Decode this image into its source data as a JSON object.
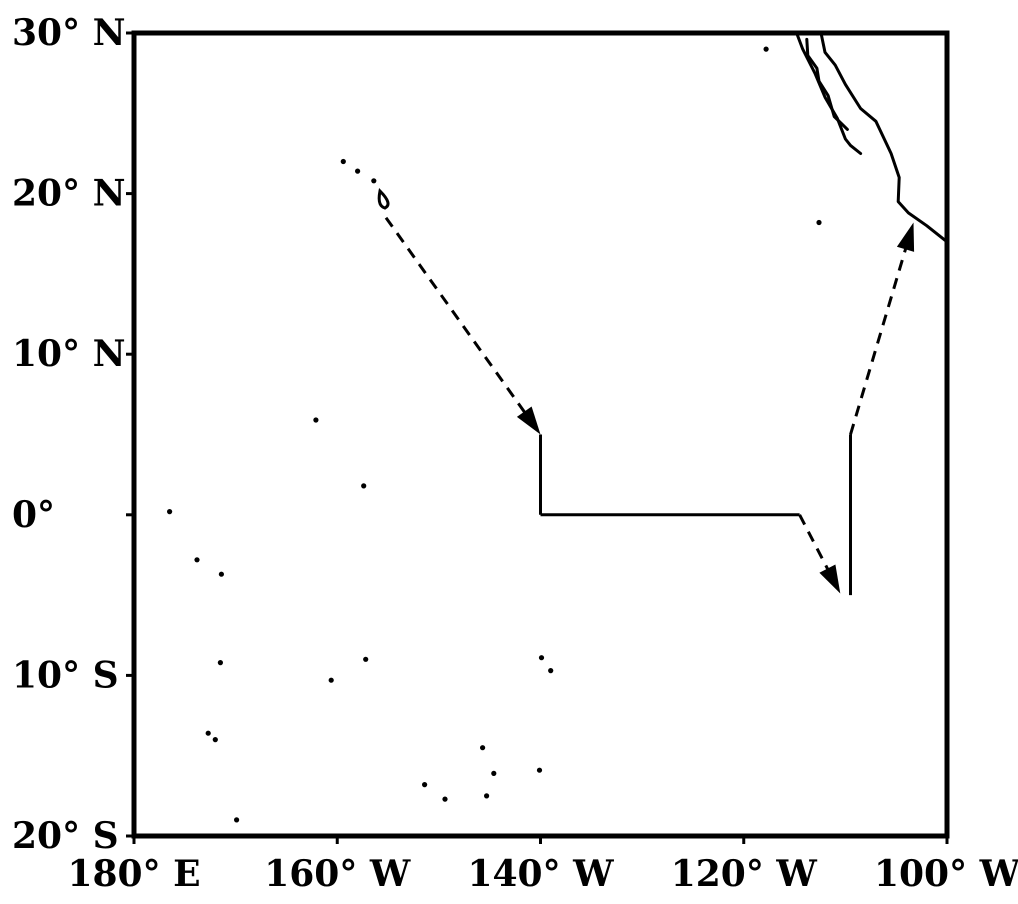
{
  "map": {
    "type": "map",
    "projection": "equirectangular",
    "lon_range": [
      180,
      260
    ],
    "lat_range": [
      -20,
      30
    ],
    "colors": {
      "frame": "#000000",
      "coastline": "#000000",
      "track": "#000000",
      "background": "#ffffff"
    },
    "x_ticks": [
      {
        "lon": 180,
        "label": "180° E"
      },
      {
        "lon": 200,
        "label": "160° W"
      },
      {
        "lon": 220,
        "label": "140° W"
      },
      {
        "lon": 240,
        "label": "120° W"
      },
      {
        "lon": 260,
        "label": "100° W"
      }
    ],
    "y_ticks": [
      {
        "lat": 30,
        "label": "30° N"
      },
      {
        "lat": 20,
        "label": "20° N"
      },
      {
        "lat": 10,
        "label": "10° N"
      },
      {
        "lat": 0,
        "label": "0°"
      },
      {
        "lat": -10,
        "label": "10° S"
      },
      {
        "lat": -20,
        "label": "20° S"
      }
    ],
    "coastlines": [
      {
        "name": "baja-california-west-coast",
        "points": [
          [
            245.2,
            30
          ],
          [
            245.8,
            29
          ],
          [
            247.0,
            27.5
          ],
          [
            248.0,
            26.0
          ],
          [
            249.2,
            24.7
          ],
          [
            250.0,
            23.4
          ],
          [
            250.5,
            23.0
          ],
          [
            251.5,
            22.5
          ]
        ]
      },
      {
        "name": "baja-california-gulf-coast",
        "points": [
          [
            246.2,
            29.6
          ],
          [
            246.3,
            28.6
          ],
          [
            247.2,
            27.8
          ],
          [
            247.4,
            27.0
          ],
          [
            248.3,
            26.1
          ],
          [
            248.9,
            24.8
          ],
          [
            250.2,
            24.0
          ]
        ]
      },
      {
        "name": "mexico-mainland-coast",
        "points": [
          [
            247.6,
            30
          ],
          [
            248.0,
            28.8
          ],
          [
            249.0,
            28.0
          ],
          [
            250.0,
            26.8
          ],
          [
            251.5,
            25.3
          ],
          [
            253.0,
            24.5
          ],
          [
            254.5,
            22.5
          ],
          [
            255.3,
            21.0
          ],
          [
            255.2,
            19.5
          ],
          [
            256.2,
            18.8
          ],
          [
            258.0,
            18.0
          ],
          [
            260.0,
            17.0
          ]
        ]
      }
    ],
    "islands": [
      {
        "name": "hawaii-big-island",
        "lon": 204.5,
        "lat": 19.6,
        "shape": "outline"
      },
      {
        "name": "kauai",
        "lon": 200.6,
        "lat": 22.0,
        "shape": "dot"
      },
      {
        "name": "oahu",
        "lon": 202.0,
        "lat": 21.4,
        "shape": "dot"
      },
      {
        "name": "maui",
        "lon": 203.6,
        "lat": 20.8,
        "shape": "dot"
      },
      {
        "name": "guadalupe",
        "lon": 242.2,
        "lat": 29.0,
        "shape": "dot"
      },
      {
        "name": "socorro",
        "lon": 247.4,
        "lat": 18.2,
        "shape": "dot"
      },
      {
        "name": "palmyra",
        "lon": 197.9,
        "lat": 5.9,
        "shape": "dot"
      },
      {
        "name": "kiritimati",
        "lon": 202.6,
        "lat": 1.8,
        "shape": "dot"
      },
      {
        "name": "howland",
        "lon": 183.5,
        "lat": 0.2,
        "shape": "dot"
      },
      {
        "name": "phoenix-a",
        "lon": 186.2,
        "lat": -2.8,
        "shape": "dot"
      },
      {
        "name": "phoenix-b",
        "lon": 188.6,
        "lat": -3.7,
        "shape": "dot"
      },
      {
        "name": "tokelau",
        "lon": 188.5,
        "lat": -9.2,
        "shape": "dot"
      },
      {
        "name": "malden",
        "lon": 202.8,
        "lat": -9.0,
        "shape": "dot"
      },
      {
        "name": "penrhyn",
        "lon": 199.4,
        "lat": -10.3,
        "shape": "dot"
      },
      {
        "name": "nuku-hiva",
        "lon": 220.1,
        "lat": -8.9,
        "shape": "dot"
      },
      {
        "name": "hiva-oa",
        "lon": 221.0,
        "lat": -9.7,
        "shape": "dot"
      },
      {
        "name": "samoa-west",
        "lon": 187.3,
        "lat": -13.6,
        "shape": "dot"
      },
      {
        "name": "samoa-east",
        "lon": 188.0,
        "lat": -14.0,
        "shape": "dot"
      },
      {
        "name": "tuamotu-a",
        "lon": 214.3,
        "lat": -14.5,
        "shape": "dot"
      },
      {
        "name": "tuamotu-b",
        "lon": 215.4,
        "lat": -16.1,
        "shape": "dot"
      },
      {
        "name": "tuamotu-c",
        "lon": 219.9,
        "lat": -15.9,
        "shape": "dot"
      },
      {
        "name": "society-a",
        "lon": 208.6,
        "lat": -16.8,
        "shape": "dot"
      },
      {
        "name": "tahiti",
        "lon": 210.6,
        "lat": -17.7,
        "shape": "dot"
      },
      {
        "name": "tuamotu-d",
        "lon": 214.7,
        "lat": -17.5,
        "shape": "dot"
      },
      {
        "name": "niue",
        "lon": 190.1,
        "lat": -19.0,
        "shape": "dot"
      }
    ],
    "track_segments": [
      {
        "name": "hawaii-to-station",
        "style": "dashed",
        "arrow": "end",
        "points": [
          [
            204.8,
            18.5
          ],
          [
            220,
            5
          ]
        ]
      },
      {
        "name": "station-to-equator",
        "style": "solid",
        "arrow": "none",
        "points": [
          [
            220,
            5
          ],
          [
            220,
            0
          ]
        ]
      },
      {
        "name": "equator-transect",
        "style": "solid",
        "arrow": "none",
        "points": [
          [
            220,
            0
          ],
          [
            245.5,
            0
          ]
        ]
      },
      {
        "name": "equator-to-south",
        "style": "dashed",
        "arrow": "end",
        "points": [
          [
            245.5,
            0
          ],
          [
            249.5,
            -4.9
          ]
        ]
      },
      {
        "name": "south-to-north",
        "style": "solid",
        "arrow": "none",
        "points": [
          [
            250.5,
            -5
          ],
          [
            250.5,
            5
          ]
        ]
      },
      {
        "name": "station-to-mexico",
        "style": "dashed",
        "arrow": "end",
        "points": [
          [
            250.5,
            5
          ],
          [
            256.7,
            18.2
          ]
        ]
      }
    ]
  }
}
